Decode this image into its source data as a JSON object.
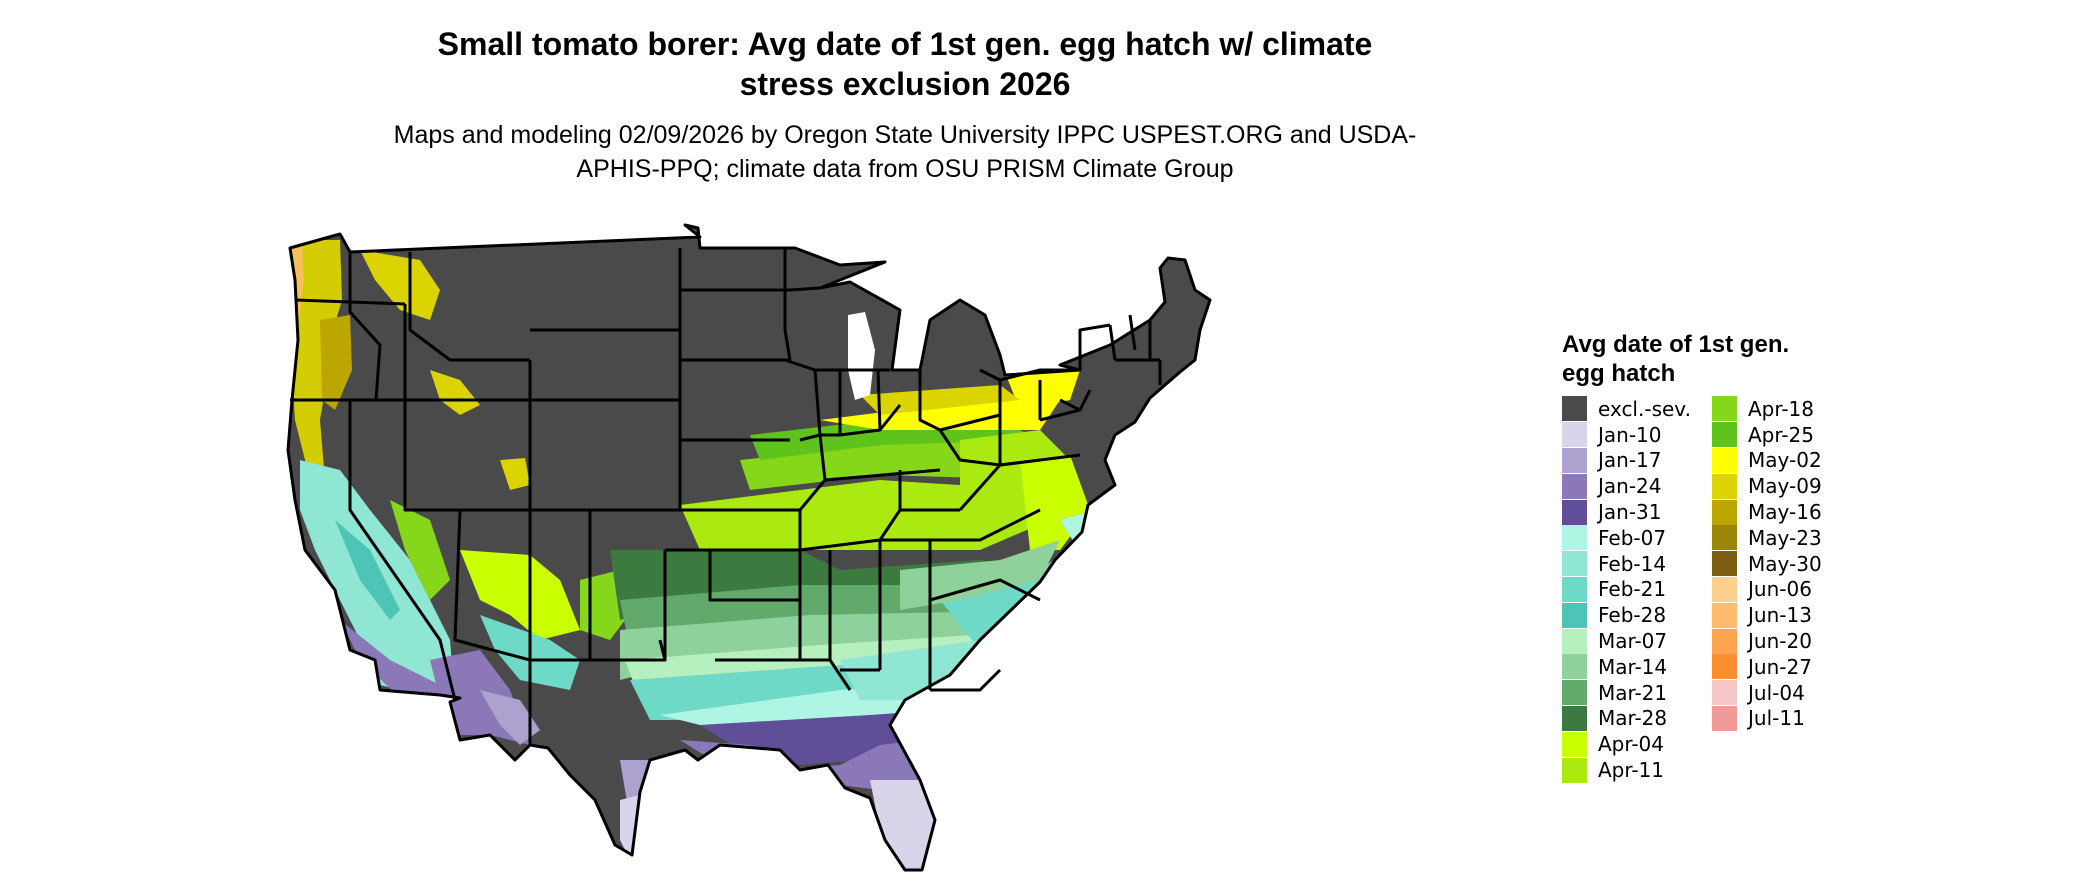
{
  "title": "Small tomato borer: Avg date of 1st gen. egg hatch w/ climate stress exclusion 2026",
  "subtitle": "Maps and modeling 02/09/2026 by Oregon State University IPPC USPEST.ORG and USDA-APHIS-PPQ; climate data from OSU PRISM Climate Group",
  "legend": {
    "title": "Avg date of 1st gen. egg hatch",
    "items": [
      {
        "label": "excl.-sev.",
        "color": "#4a4a4a"
      },
      {
        "label": "Jan-10",
        "color": "#dad4ea"
      },
      {
        "label": "Jan-17",
        "color": "#ada2cf"
      },
      {
        "label": "Jan-24",
        "color": "#8a78b8"
      },
      {
        "label": "Jan-31",
        "color": "#604e99"
      },
      {
        "label": "Feb-07",
        "color": "#aef5e3"
      },
      {
        "label": "Feb-14",
        "color": "#8fe6d3"
      },
      {
        "label": "Feb-21",
        "color": "#6dd9c6"
      },
      {
        "label": "Feb-28",
        "color": "#4ec4b6"
      },
      {
        "label": "Mar-07",
        "color": "#b6f0bf"
      },
      {
        "label": "Mar-14",
        "color": "#8ed19a"
      },
      {
        "label": "Mar-21",
        "color": "#62a96c"
      },
      {
        "label": "Mar-28",
        "color": "#3d7a40"
      },
      {
        "label": "Apr-04",
        "color": "#c9ff00"
      },
      {
        "label": "Apr-11",
        "color": "#abea10"
      },
      {
        "label": "Apr-18",
        "color": "#86d61a"
      },
      {
        "label": "Apr-25",
        "color": "#5ec41c"
      },
      {
        "label": "May-02",
        "color": "#ffff00"
      },
      {
        "label": "May-09",
        "color": "#dbd400"
      },
      {
        "label": "May-16",
        "color": "#bba700"
      },
      {
        "label": "May-23",
        "color": "#9c8608"
      },
      {
        "label": "May-30",
        "color": "#7d5e10"
      },
      {
        "label": "Jun-06",
        "color": "#fdd08f"
      },
      {
        "label": "Jun-13",
        "color": "#fcbb6d"
      },
      {
        "label": "Jun-20",
        "color": "#fca54e"
      },
      {
        "label": "Jun-27",
        "color": "#fb8e2e"
      },
      {
        "label": "Jul-04",
        "color": "#f6c8c8"
      },
      {
        "label": "Jul-11",
        "color": "#f29a98"
      }
    ]
  }
}
